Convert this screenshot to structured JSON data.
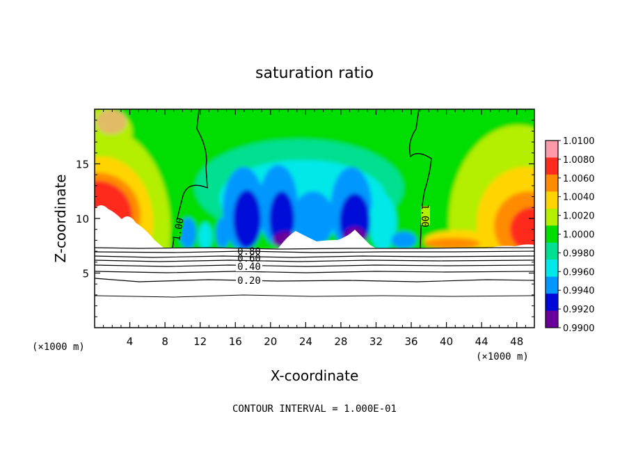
{
  "chart_data": {
    "type": "heatmap",
    "title": "saturation ratio",
    "xlabel": "X-coordinate",
    "ylabel": "Z-coordinate",
    "x_unit": "(×1000 m)",
    "footer": "CONTOUR INTERVAL = 1.000E-01",
    "xlim": [
      0,
      50
    ],
    "ylim": [
      0,
      20
    ],
    "x_ticks": [
      "4",
      "8",
      "12",
      "16",
      "20",
      "24",
      "28",
      "32",
      "36",
      "40",
      "44",
      "48"
    ],
    "y_ticks": [
      "5",
      "10",
      "15"
    ],
    "colorbar": {
      "levels": [
        "1.0100",
        "1.0080",
        "1.0060",
        "1.0040",
        "1.0020",
        "1.0000",
        "0.9980",
        "0.9960",
        "0.9940",
        "0.9920",
        "0.9900"
      ],
      "colors": [
        "#ff9aa8",
        "#ff2b1e",
        "#ff8c00",
        "#ffd400",
        "#b4ee00",
        "#00dd00",
        "#00e090",
        "#00e8e8",
        "#0098ff",
        "#0008d8",
        "#6a009a"
      ]
    },
    "contour_labels": [
      "1.00",
      "1.00",
      "0.80",
      "0.60",
      "0.40",
      "0.20"
    ],
    "mountain_top_height": 7.3
  }
}
